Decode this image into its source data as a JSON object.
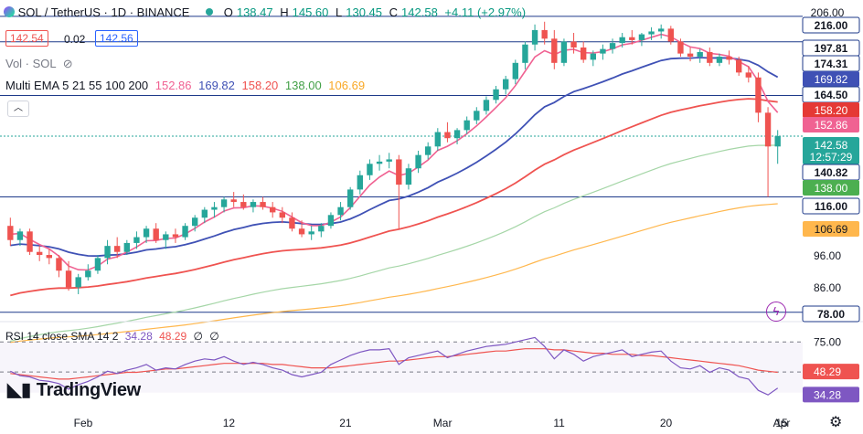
{
  "header": {
    "symbol": "SOL / TetherUS · 1D · BINANCE",
    "open_label": "O",
    "open": "138.47",
    "high_label": "H",
    "high": "145.60",
    "low_label": "L",
    "low": "130.45",
    "close_label": "C",
    "close": "142.58",
    "change": "+4.11 (+2.97%)",
    "bid": "142.54",
    "spread": "0.02",
    "ask": "142.56",
    "vol_label": "Vol · SOL",
    "ema_label": "Multi EMA 5 21 55 100 200",
    "ema_values": [
      "152.86",
      "169.82",
      "158.20",
      "138.00",
      "106.69"
    ],
    "rsi_label": "RSI 14 close SMA 14 2",
    "rsi_values": [
      "34.28",
      "48.29",
      "∅",
      "∅"
    ],
    "logo": "TradingView"
  },
  "colors": {
    "up": "#26a69a",
    "down": "#ef5350",
    "ema5": "#f06292",
    "ema21": "#3f51b5",
    "ema55": "#ef5350",
    "ema100": "#a5d6a7",
    "ema200": "#ffb74d",
    "rsi": "#7e57c2",
    "rsi_sma": "#ef5350"
  },
  "chart_data": {
    "type": "candlestick",
    "y_scale": "log",
    "ylim": [
      76,
      220
    ],
    "x_ticks": [
      "Feb",
      "12",
      "21",
      "Mar",
      "11",
      "20",
      "Apr",
      "15"
    ],
    "y_ticks": [
      "206.00",
      "96.00",
      "86.00"
    ],
    "horizontal_lines": [
      216.0,
      197.81,
      164.5,
      116.0,
      78.0
    ],
    "price_labels": [
      {
        "text": "216.00",
        "style": "line"
      },
      {
        "text": "197.81",
        "style": "line"
      },
      {
        "text": "174.31",
        "style": "line"
      },
      {
        "text": "169.82",
        "style": "ema21"
      },
      {
        "text": "164.50",
        "style": "line"
      },
      {
        "text": "158.20",
        "style": "ema55"
      },
      {
        "text": "152.86",
        "style": "ema5"
      },
      {
        "text": "142.58",
        "style": "last"
      },
      {
        "text": "12:57:29",
        "style": "last"
      },
      {
        "text": "140.82",
        "style": "line"
      },
      {
        "text": "138.00",
        "style": "ema100"
      },
      {
        "text": "116.00",
        "style": "line"
      },
      {
        "text": "106.69",
        "style": "ema200"
      },
      {
        "text": "78.00",
        "style": "line"
      }
    ],
    "candles": [
      [
        105,
        108,
        98,
        100
      ],
      [
        100,
        104,
        98,
        103
      ],
      [
        103,
        104,
        95,
        96
      ],
      [
        96,
        98,
        93,
        95
      ],
      [
        95,
        97,
        92,
        94
      ],
      [
        94,
        95,
        88,
        90
      ],
      [
        90,
        93,
        84,
        85
      ],
      [
        85,
        89,
        83,
        88
      ],
      [
        88,
        92,
        87,
        90
      ],
      [
        90,
        95,
        89,
        94
      ],
      [
        94,
        100,
        92,
        98
      ],
      [
        98,
        101,
        94,
        96
      ],
      [
        96,
        100,
        95,
        99
      ],
      [
        99,
        103,
        97,
        101
      ],
      [
        101,
        105,
        99,
        104
      ],
      [
        104,
        106,
        99,
        100
      ],
      [
        100,
        103,
        97,
        102
      ],
      [
        102,
        104,
        99,
        101
      ],
      [
        101,
        106,
        100,
        105
      ],
      [
        105,
        109,
        103,
        108
      ],
      [
        108,
        112,
        106,
        111
      ],
      [
        111,
        114,
        108,
        112
      ],
      [
        112,
        116,
        110,
        115
      ],
      [
        115,
        118,
        112,
        114
      ],
      [
        114,
        117,
        111,
        112
      ],
      [
        112,
        115,
        110,
        114
      ],
      [
        114,
        116,
        111,
        112
      ],
      [
        112,
        114,
        108,
        110
      ],
      [
        110,
        112,
        106,
        108
      ],
      [
        108,
        110,
        103,
        104
      ],
      [
        104,
        107,
        101,
        102
      ],
      [
        102,
        105,
        100,
        103
      ],
      [
        103,
        106,
        101,
        105
      ],
      [
        105,
        110,
        104,
        109
      ],
      [
        109,
        114,
        107,
        112
      ],
      [
        112,
        120,
        111,
        119
      ],
      [
        119,
        127,
        117,
        125
      ],
      [
        125,
        132,
        123,
        130
      ],
      [
        130,
        134,
        127,
        131
      ],
      [
        131,
        135,
        128,
        132
      ],
      [
        132,
        134,
        104,
        121
      ],
      [
        121,
        130,
        119,
        128
      ],
      [
        128,
        136,
        126,
        134
      ],
      [
        134,
        140,
        132,
        138
      ],
      [
        138,
        147,
        136,
        145
      ],
      [
        145,
        150,
        140,
        142
      ],
      [
        142,
        147,
        139,
        146
      ],
      [
        146,
        153,
        144,
        151
      ],
      [
        151,
        158,
        149,
        156
      ],
      [
        156,
        164,
        154,
        162
      ],
      [
        162,
        170,
        160,
        168
      ],
      [
        168,
        176,
        165,
        174
      ],
      [
        174,
        186,
        171,
        184
      ],
      [
        184,
        198,
        180,
        196
      ],
      [
        196,
        210,
        192,
        206
      ],
      [
        206,
        212,
        196,
        200
      ],
      [
        200,
        206,
        180,
        184
      ],
      [
        184,
        200,
        182,
        198
      ],
      [
        198,
        204,
        190,
        194
      ],
      [
        194,
        198,
        184,
        186
      ],
      [
        186,
        192,
        182,
        190
      ],
      [
        190,
        196,
        186,
        193
      ],
      [
        193,
        200,
        190,
        197
      ],
      [
        197,
        204,
        194,
        201
      ],
      [
        201,
        206,
        196,
        199
      ],
      [
        199,
        204,
        195,
        203
      ],
      [
        203,
        208,
        199,
        205
      ],
      [
        205,
        210,
        200,
        207
      ],
      [
        207,
        209,
        196,
        198
      ],
      [
        198,
        200,
        188,
        190
      ],
      [
        190,
        194,
        185,
        188
      ],
      [
        188,
        193,
        184,
        191
      ],
      [
        191,
        194,
        182,
        184
      ],
      [
        184,
        190,
        182,
        188
      ],
      [
        188,
        192,
        183,
        186
      ],
      [
        186,
        188,
        176,
        178
      ],
      [
        178,
        182,
        172,
        175
      ],
      [
        175,
        178,
        150,
        155
      ],
      [
        155,
        158,
        116,
        138
      ],
      [
        138,
        146,
        130,
        143
      ]
    ],
    "rsi": {
      "ylim": [
        20,
        85
      ],
      "levels": [
        75,
        48.29,
        34.28
      ],
      "values": [
        49,
        45,
        44,
        41,
        40,
        38,
        33,
        37,
        40,
        44,
        49,
        47,
        50,
        52,
        55,
        50,
        52,
        51,
        55,
        58,
        60,
        59,
        62,
        58,
        55,
        57,
        55,
        52,
        50,
        46,
        44,
        46,
        48,
        55,
        59,
        63,
        66,
        68,
        68,
        69,
        55,
        61,
        63,
        65,
        67,
        61,
        64,
        67,
        69,
        71,
        72,
        73,
        75,
        77,
        79,
        71,
        60,
        68,
        64,
        58,
        62,
        64,
        66,
        68,
        62,
        64,
        66,
        67,
        58,
        52,
        51,
        54,
        48,
        52,
        50,
        44,
        42,
        32,
        28,
        34
      ],
      "sma": [
        47,
        46,
        45,
        44,
        43,
        42,
        42,
        43,
        44,
        45,
        46,
        47,
        48,
        48,
        49,
        50,
        51,
        51,
        52,
        53,
        54,
        55,
        56,
        56,
        56,
        56,
        56,
        55,
        55,
        54,
        53,
        52,
        52,
        52,
        53,
        54,
        55,
        56,
        57,
        58,
        58,
        59,
        60,
        61,
        62,
        62,
        63,
        64,
        65,
        66,
        67,
        67,
        68,
        69,
        69,
        69,
        68,
        68,
        67,
        66,
        65,
        65,
        64,
        64,
        64,
        63,
        63,
        62,
        61,
        60,
        59,
        58,
        57,
        56,
        55,
        54,
        52,
        50,
        49,
        48
      ]
    }
  }
}
